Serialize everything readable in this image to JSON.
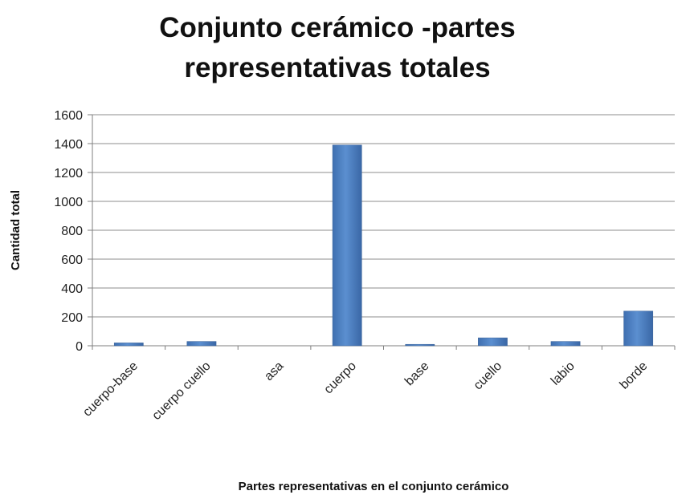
{
  "chart_data": {
    "type": "bar",
    "title_lines": [
      "Conjunto cerámico -partes",
      "representativas totales"
    ],
    "xlabel": "Partes representativas en el conjunto cerámico",
    "ylabel": "Cantidad total",
    "categories": [
      "cuerpo-base",
      "cuerpo cuello",
      "asa",
      "cuerpo",
      "base",
      "cuello",
      "labio",
      "borde"
    ],
    "values": [
      20,
      30,
      0,
      1390,
      10,
      55,
      30,
      240
    ],
    "ylim": [
      0,
      1600
    ],
    "yticks": [
      0,
      200,
      400,
      600,
      800,
      1000,
      1200,
      1400,
      1600
    ],
    "grid": true,
    "legend": "none",
    "bar_color": "#4f81bd"
  }
}
